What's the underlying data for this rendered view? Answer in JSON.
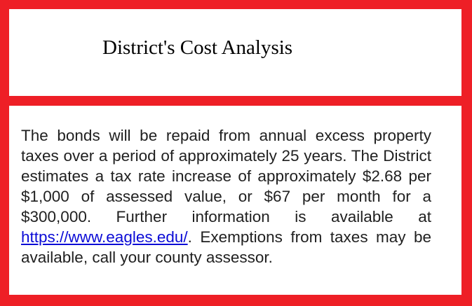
{
  "header": {
    "title": "District's Cost Analysis"
  },
  "body": {
    "text_before_link": "The bonds will be repaid from annual excess property taxes over a period of approximately 25 years. The District estimates a tax rate increase of approximately $2.68 per $1,000 of assessed value, or $67 per month for a $300,000. Further information is available at ",
    "link_text": "https://www.eagles.edu/",
    "text_after_link": ". Exemptions from taxes may be available, call your county assessor."
  },
  "colors": {
    "frame": "#ee1f26",
    "panel": "#ffffff",
    "link": "#0b0bd6"
  }
}
